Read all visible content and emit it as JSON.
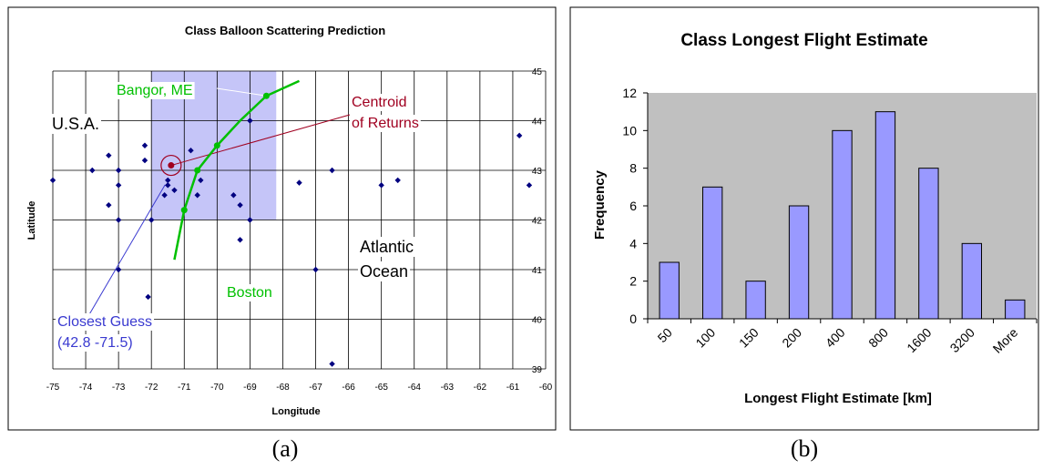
{
  "colors": {
    "shade": "#c5c5f8",
    "grid": "#000000",
    "points": "#000080",
    "coast": "#00c000",
    "centroid": "#a00020",
    "guess": "#3a3ad0",
    "bar_fill": "#9999ff",
    "plot_bg": "#c0c0c0"
  },
  "chart_data": [
    {
      "type": "scatter",
      "title": "Class Balloon Scattering Prediction",
      "xlabel": "Longitude",
      "ylabel": "Latitude",
      "xlim": [
        -75,
        -60
      ],
      "ylim": [
        39,
        45
      ],
      "x_ticks": [
        "-75",
        "-74",
        "-73",
        "-72",
        "-71",
        "-70",
        "-69",
        "-68",
        "-67",
        "-66",
        "-65",
        "-64",
        "-63",
        "-62",
        "-61",
        "-60"
      ],
      "y_ticks": [
        "39",
        "40",
        "41",
        "42",
        "43",
        "44",
        "45"
      ],
      "grid": true,
      "shaded_region": {
        "x": [
          -72.0,
          -68.2
        ],
        "y": [
          42.0,
          45.0
        ]
      },
      "points": [
        {
          "x": -75.0,
          "y": 42.8
        },
        {
          "x": -73.8,
          "y": 43.0
        },
        {
          "x": -73.3,
          "y": 43.3
        },
        {
          "x": -73.3,
          "y": 42.3
        },
        {
          "x": -73.0,
          "y": 43.0
        },
        {
          "x": -73.0,
          "y": 42.7
        },
        {
          "x": -73.0,
          "y": 42.0
        },
        {
          "x": -73.0,
          "y": 41.0
        },
        {
          "x": -72.2,
          "y": 43.5
        },
        {
          "x": -72.2,
          "y": 43.2
        },
        {
          "x": -72.0,
          "y": 42.0
        },
        {
          "x": -72.1,
          "y": 40.45
        },
        {
          "x": -71.6,
          "y": 42.5
        },
        {
          "x": -71.5,
          "y": 42.7
        },
        {
          "x": -71.5,
          "y": 42.8
        },
        {
          "x": -71.3,
          "y": 42.6
        },
        {
          "x": -70.8,
          "y": 43.4
        },
        {
          "x": -70.5,
          "y": 42.8
        },
        {
          "x": -70.6,
          "y": 42.5
        },
        {
          "x": -69.5,
          "y": 42.5
        },
        {
          "x": -69.3,
          "y": 42.3
        },
        {
          "x": -69.3,
          "y": 41.6
        },
        {
          "x": -69.0,
          "y": 44.0
        },
        {
          "x": -69.0,
          "y": 42.0
        },
        {
          "x": -67.5,
          "y": 42.75
        },
        {
          "x": -67.0,
          "y": 41.0
        },
        {
          "x": -66.5,
          "y": 43.0
        },
        {
          "x": -66.5,
          "y": 39.1
        },
        {
          "x": -65.0,
          "y": 42.7
        },
        {
          "x": -64.5,
          "y": 42.8
        },
        {
          "x": -60.8,
          "y": 43.7
        },
        {
          "x": -60.5,
          "y": 42.7
        }
      ],
      "coastline": [
        {
          "x": -71.3,
          "y": 41.2
        },
        {
          "x": -71.0,
          "y": 42.2
        },
        {
          "x": -70.6,
          "y": 43.0
        },
        {
          "x": -70.0,
          "y": 43.5
        },
        {
          "x": -69.3,
          "y": 44.0
        },
        {
          "x": -68.5,
          "y": 44.5
        },
        {
          "x": -67.5,
          "y": 44.8
        }
      ],
      "coast_markers": [
        {
          "x": -71.0,
          "y": 42.2
        },
        {
          "x": -70.6,
          "y": 43.0
        },
        {
          "x": -70.0,
          "y": 43.5
        },
        {
          "x": -68.5,
          "y": 44.5
        }
      ],
      "centroid": {
        "x": -71.4,
        "y": 43.1
      },
      "closest_guess": {
        "x": -71.5,
        "y": 42.8
      },
      "annotations": {
        "bangor": "Bangor, ME",
        "usa": "U.S.A.",
        "centroid_line1": "Centroid",
        "centroid_line2": "of Returns",
        "atlantic_line1": "Atlantic",
        "atlantic_line2": "Ocean",
        "boston": "Boston",
        "guess_line1": "Closest Guess",
        "guess_line2": "(42.8 -71.5)"
      },
      "caption": "(a)"
    },
    {
      "type": "bar",
      "title": "Class Longest Flight Estimate",
      "xlabel": "Longest Flight Estimate [km]",
      "ylabel": "Frequency",
      "categories": [
        "50",
        "100",
        "150",
        "200",
        "400",
        "800",
        "1600",
        "3200",
        "More"
      ],
      "values": [
        3,
        7,
        2,
        6,
        10,
        11,
        8,
        4,
        1
      ],
      "ylim": [
        0,
        12
      ],
      "y_ticks": [
        "0",
        "2",
        "4",
        "6",
        "8",
        "10",
        "12"
      ],
      "grid": false,
      "caption": "(b)"
    }
  ]
}
